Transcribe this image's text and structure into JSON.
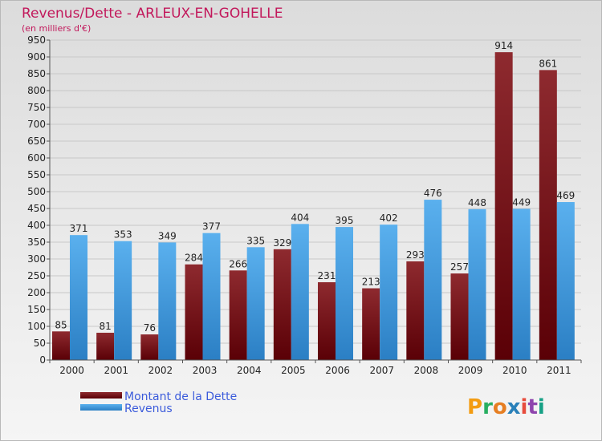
{
  "chart_data": {
    "type": "bar",
    "title": "Revenus/Dette - ARLEUX-EN-GOHELLE",
    "subtitle": "(en milliers d'€)",
    "xlabel": "",
    "ylabel": "",
    "ylim": [
      0,
      950
    ],
    "yticks": [
      0,
      50,
      100,
      150,
      200,
      250,
      300,
      350,
      400,
      450,
      500,
      550,
      600,
      650,
      700,
      750,
      800,
      850,
      900,
      950
    ],
    "grid": true,
    "legend_position": "bottom-left",
    "categories": [
      "2000",
      "2001",
      "2002",
      "2003",
      "2004",
      "2005",
      "2006",
      "2007",
      "2008",
      "2009",
      "2010",
      "2011"
    ],
    "series": [
      {
        "name": "Montant de la Dette",
        "color": "#7a1418",
        "values": [
          85,
          81,
          76,
          284,
          266,
          329,
          231,
          213,
          293,
          257,
          914,
          861
        ]
      },
      {
        "name": "Revenus",
        "color": "#4aa3e6",
        "values": [
          371,
          353,
          349,
          377,
          335,
          404,
          395,
          402,
          476,
          448,
          449,
          469
        ]
      }
    ]
  },
  "brand": {
    "logo_text": "Proxiti"
  }
}
